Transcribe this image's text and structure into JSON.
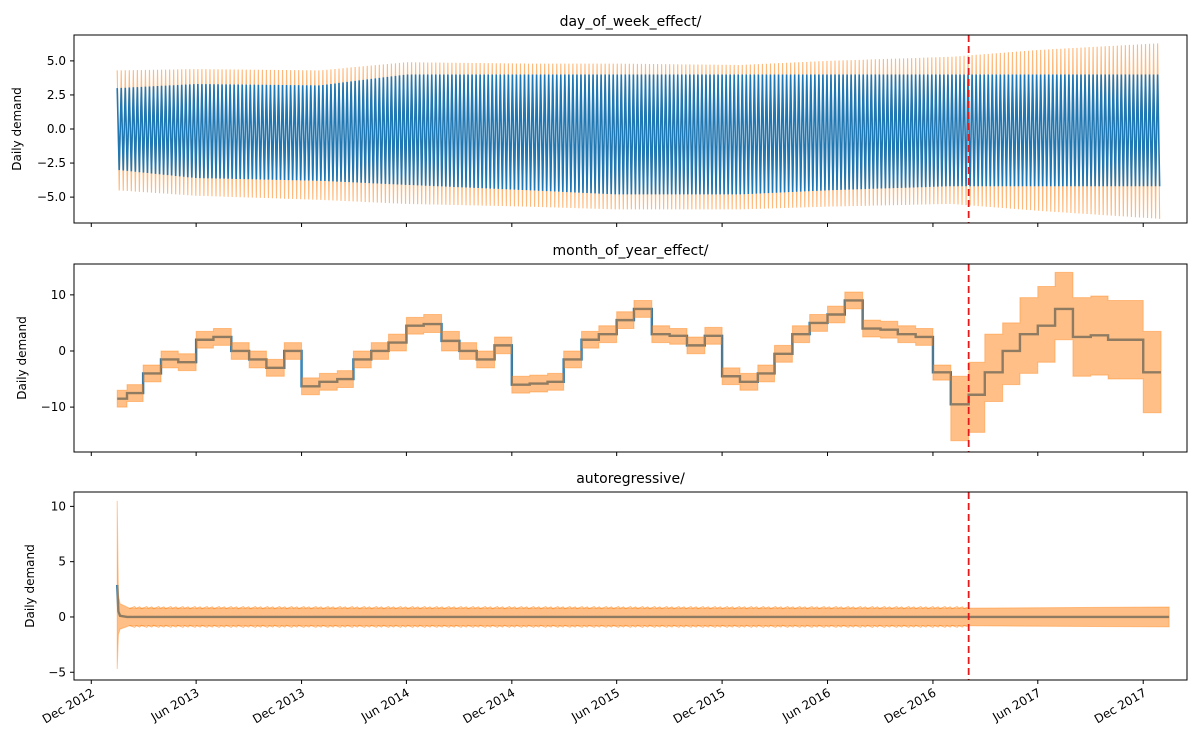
{
  "chart_data": [
    {
      "type": "line",
      "title": "day_of_week_effect/",
      "ylabel": "Daily demand",
      "ylim": [
        -6.9,
        6.9
      ],
      "yticks": [
        -5.0,
        -2.5,
        0.0,
        2.5,
        5.0
      ],
      "yticklabels": [
        "−5.0",
        "−2.5",
        "0.0",
        "2.5",
        "5.0"
      ],
      "series": [
        {
          "role": "mean",
          "color": "#1f77b4",
          "style": "weekly-oscillation",
          "x": [
            "2013-01-15",
            "2013-06-01",
            "2014-01-01",
            "2014-06-01",
            "2015-01-01",
            "2015-06-01",
            "2016-01-01",
            "2016-06-01",
            "2017-01-01",
            "2017-06-01",
            "2018-01-01"
          ],
          "upper": [
            3.0,
            3.3,
            3.2,
            4.0,
            4.0,
            4.0,
            4.0,
            4.0,
            4.0,
            4.0,
            4.0
          ],
          "lower": [
            -3.0,
            -3.6,
            -3.8,
            -4.1,
            -4.5,
            -4.8,
            -4.8,
            -4.5,
            -4.2,
            -4.2,
            -4.2
          ]
        },
        {
          "role": "interval",
          "color": "#ff7f0e",
          "style": "weekly-oscillation",
          "x": [
            "2013-01-15",
            "2013-06-01",
            "2014-01-01",
            "2014-06-01",
            "2015-01-01",
            "2015-06-01",
            "2016-01-01",
            "2016-06-01",
            "2017-01-01",
            "2017-06-01",
            "2018-01-01"
          ],
          "upper": [
            4.3,
            4.4,
            4.3,
            4.9,
            4.8,
            4.8,
            4.7,
            5.0,
            5.3,
            5.8,
            6.3
          ],
          "lower": [
            -4.5,
            -4.9,
            -5.2,
            -5.5,
            -5.7,
            -5.9,
            -5.9,
            -5.7,
            -5.5,
            -6.0,
            -6.6
          ]
        }
      ],
      "forecast_start": "2017-02-01"
    },
    {
      "type": "line",
      "title": "month_of_year_effect/",
      "ylabel": "Daily demand",
      "ylim": [
        -18,
        15.5
      ],
      "yticks": [
        -10,
        0,
        10
      ],
      "yticklabels": [
        "−10",
        "0",
        "10"
      ],
      "series": [
        {
          "role": "mean",
          "color": "#1f77b4",
          "style": "step",
          "x": [
            "2013-01-15",
            "2013-02-01",
            "2013-03-01",
            "2013-04-01",
            "2013-05-01",
            "2013-06-01",
            "2013-07-01",
            "2013-08-01",
            "2013-09-01",
            "2013-10-01",
            "2013-11-01",
            "2013-12-01",
            "2014-01-01",
            "2014-02-01",
            "2014-03-01",
            "2014-04-01",
            "2014-05-01",
            "2014-06-01",
            "2014-07-01",
            "2014-08-01",
            "2014-09-01",
            "2014-10-01",
            "2014-11-01",
            "2014-12-01",
            "2015-01-01",
            "2015-02-01",
            "2015-03-01",
            "2015-04-01",
            "2015-05-01",
            "2015-06-01",
            "2015-07-01",
            "2015-08-01",
            "2015-09-01",
            "2015-10-01",
            "2015-11-01",
            "2015-12-01",
            "2016-01-01",
            "2016-02-01",
            "2016-03-01",
            "2016-04-01",
            "2016-05-01",
            "2016-06-01",
            "2016-07-01",
            "2016-08-01",
            "2016-09-01",
            "2016-10-01",
            "2016-11-01",
            "2016-12-01",
            "2017-01-01",
            "2017-02-01",
            "2017-03-01",
            "2017-04-01",
            "2017-05-01",
            "2017-06-01",
            "2017-07-01",
            "2017-08-01",
            "2017-09-01",
            "2017-10-01",
            "2017-11-01",
            "2017-12-01",
            "2018-01-01"
          ],
          "y": [
            -8.5,
            -7.5,
            -4.0,
            -1.5,
            -2.0,
            2.0,
            2.5,
            0.0,
            -1.5,
            -3.0,
            0.0,
            -6.3,
            -5.5,
            -5.0,
            -1.5,
            0.0,
            1.5,
            4.5,
            4.8,
            1.8,
            0.0,
            -1.5,
            1.0,
            -6.0,
            -5.8,
            -5.5,
            -1.5,
            2.0,
            3.0,
            5.5,
            7.5,
            3.0,
            2.7,
            1.0,
            2.7,
            -4.5,
            -5.5,
            -4.0,
            -0.5,
            3.0,
            5.0,
            6.5,
            9.0,
            4.0,
            3.8,
            3.0,
            2.5,
            -3.8,
            -9.5,
            -7.8,
            -3.8,
            0.0,
            3.0,
            4.5,
            7.5,
            2.5,
            2.8,
            2.0,
            2.0,
            -3.8,
            -3.8
          ]
        },
        {
          "role": "interval",
          "color": "#ff7f0e",
          "style": "step-band",
          "x": [
            "2013-01-15",
            "2013-02-01",
            "2013-03-01",
            "2013-04-01",
            "2013-05-01",
            "2013-06-01",
            "2013-07-01",
            "2013-08-01",
            "2013-09-01",
            "2013-10-01",
            "2013-11-01",
            "2013-12-01",
            "2014-01-01",
            "2014-02-01",
            "2014-03-01",
            "2014-04-01",
            "2014-05-01",
            "2014-06-01",
            "2014-07-01",
            "2014-08-01",
            "2014-09-01",
            "2014-10-01",
            "2014-11-01",
            "2014-12-01",
            "2015-01-01",
            "2015-02-01",
            "2015-03-01",
            "2015-04-01",
            "2015-05-01",
            "2015-06-01",
            "2015-07-01",
            "2015-08-01",
            "2015-09-01",
            "2015-10-01",
            "2015-11-01",
            "2015-12-01",
            "2016-01-01",
            "2016-02-01",
            "2016-03-01",
            "2016-04-01",
            "2016-05-01",
            "2016-06-01",
            "2016-07-01",
            "2016-08-01",
            "2016-09-01",
            "2016-10-01",
            "2016-11-01",
            "2016-12-01",
            "2017-01-01",
            "2017-02-01",
            "2017-03-01",
            "2017-04-01",
            "2017-05-01",
            "2017-06-01",
            "2017-07-01",
            "2017-08-01",
            "2017-09-01",
            "2017-10-01",
            "2017-11-01",
            "2017-12-01",
            "2018-01-01"
          ],
          "upper": [
            -7.0,
            -6.0,
            -2.5,
            0.0,
            -0.5,
            3.5,
            4.0,
            1.5,
            0.0,
            -1.5,
            1.5,
            -4.8,
            -4.0,
            -3.5,
            0.0,
            1.5,
            3.0,
            6.0,
            6.5,
            3.5,
            1.5,
            0.0,
            2.5,
            -4.5,
            -4.3,
            -4.0,
            0.0,
            3.5,
            4.5,
            7.0,
            9.0,
            4.5,
            4.0,
            2.5,
            4.2,
            -3.0,
            -4.0,
            -2.5,
            1.0,
            4.5,
            6.5,
            8.0,
            10.5,
            5.5,
            5.3,
            4.5,
            4.0,
            -2.5,
            -4.5,
            -2.0,
            3.0,
            5.0,
            9.5,
            11.5,
            14.0,
            9.5,
            9.8,
            9.0,
            9.0,
            3.5,
            3.5
          ],
          "lower": [
            -10.0,
            -9.0,
            -5.5,
            -3.0,
            -3.5,
            0.5,
            1.0,
            -1.5,
            -3.0,
            -4.5,
            -1.5,
            -7.8,
            -7.0,
            -6.5,
            -3.0,
            -1.5,
            0.0,
            3.0,
            3.3,
            0.0,
            -1.5,
            -3.0,
            -0.5,
            -7.5,
            -7.3,
            -7.0,
            -3.0,
            0.5,
            1.5,
            4.0,
            6.0,
            1.5,
            1.2,
            -0.5,
            1.2,
            -6.0,
            -7.0,
            -5.5,
            -2.0,
            1.5,
            3.5,
            5.0,
            7.5,
            2.5,
            2.3,
            1.5,
            1.0,
            -5.2,
            -16.0,
            -14.5,
            -9.0,
            -6.0,
            -4.0,
            -2.0,
            2.0,
            -4.5,
            -4.3,
            -5.0,
            -5.0,
            -11.0,
            -11.0
          ]
        }
      ],
      "forecast_start": "2017-02-01"
    },
    {
      "type": "line",
      "title": "autoregressive/",
      "ylabel": "Daily demand",
      "ylim": [
        -5.7,
        11.3
      ],
      "yticks": [
        -5,
        0,
        5,
        10
      ],
      "yticklabels": [
        "−5",
        "0",
        "5",
        "10"
      ],
      "series": [
        {
          "role": "mean",
          "color": "#1f77b4",
          "style": "line",
          "x": [
            "2013-01-15",
            "2013-01-17",
            "2013-01-20",
            "2013-02-01",
            "2018-01-15"
          ],
          "y": [
            2.9,
            0.5,
            0.1,
            0.0,
            0.0
          ]
        },
        {
          "role": "interval",
          "color": "#ff7f0e",
          "style": "band",
          "x": [
            "2013-01-15",
            "2013-01-17",
            "2013-01-20",
            "2013-02-05",
            "2017-02-01",
            "2018-01-15"
          ],
          "upper": [
            10.5,
            2.0,
            1.2,
            0.8,
            0.8,
            0.9
          ],
          "lower": [
            -4.7,
            -1.6,
            -1.1,
            -0.8,
            -0.8,
            -0.9
          ]
        }
      ],
      "forecast_start": "2017-02-01"
    }
  ],
  "x_axis": {
    "tick_dates": [
      "2012-12-01",
      "2013-06-01",
      "2013-12-01",
      "2014-06-01",
      "2014-12-01",
      "2015-06-01",
      "2015-12-01",
      "2016-06-01",
      "2016-12-01",
      "2017-06-01",
      "2017-12-01"
    ],
    "tick_labels": [
      "Dec 2012",
      "Jun 2013",
      "Dec 2013",
      "Jun 2014",
      "Dec 2014",
      "Jun 2015",
      "Dec 2015",
      "Jun 2016",
      "Dec 2016",
      "Jun 2017",
      "Dec 2017"
    ],
    "range": [
      "2012-11-01",
      "2018-02-15"
    ]
  },
  "colors": {
    "mean": "#1f77b4",
    "interval": "#ff7f0e",
    "forecast_line": "#e31a1c",
    "axes": "#000000"
  }
}
